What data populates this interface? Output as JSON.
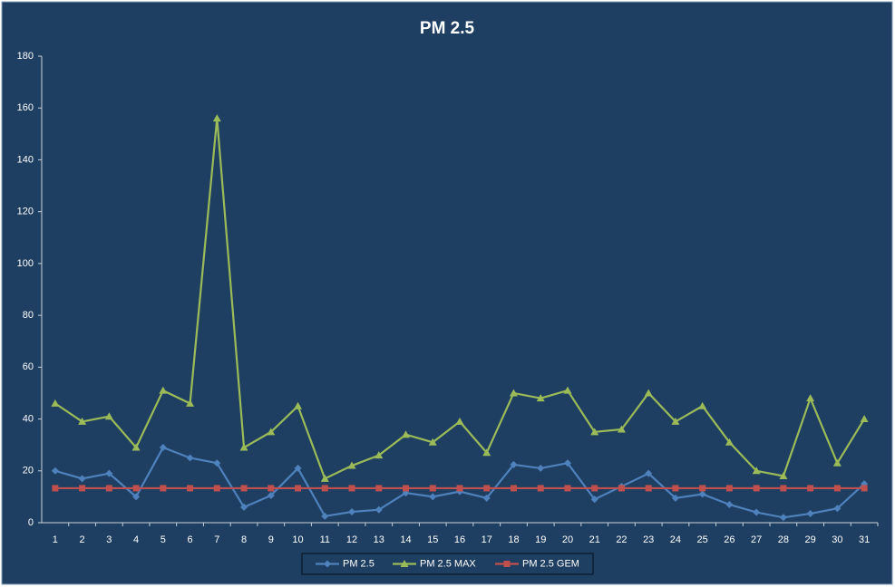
{
  "chart_data": {
    "type": "line",
    "title": "PM 2.5",
    "categories": [
      "1",
      "2",
      "3",
      "4",
      "5",
      "6",
      "7",
      "8",
      "9",
      "10",
      "11",
      "12",
      "13",
      "14",
      "15",
      "16",
      "17",
      "18",
      "19",
      "20",
      "21",
      "22",
      "23",
      "24",
      "25",
      "26",
      "27",
      "28",
      "29",
      "30",
      "31"
    ],
    "series": [
      {
        "name": "PM 2.5",
        "color": "#4f81bd",
        "marker": "diamond",
        "values": [
          20,
          17,
          19,
          10,
          29,
          25,
          23,
          6,
          10.5,
          21,
          2.5,
          4.2,
          5,
          11.5,
          10,
          12,
          9.5,
          22.4,
          21,
          23,
          9,
          14,
          19,
          9.5,
          11,
          7,
          4,
          2,
          3.5,
          5.5,
          15
        ]
      },
      {
        "name": "PM 2.5 MAX",
        "color": "#9bbb59",
        "marker": "triangle",
        "values": [
          46,
          39,
          41,
          29,
          51,
          46,
          156,
          29,
          35,
          45,
          17,
          22,
          26,
          34,
          31,
          39,
          27,
          50,
          48,
          51,
          35,
          36,
          50,
          39,
          45,
          31,
          20,
          18,
          48,
          23,
          40
        ]
      },
      {
        "name": "PM 2.5 GEM",
        "color": "#c0504d",
        "marker": "square",
        "values": [
          13.3,
          13.3,
          13.3,
          13.3,
          13.3,
          13.3,
          13.3,
          13.3,
          13.3,
          13.3,
          13.3,
          13.3,
          13.3,
          13.3,
          13.3,
          13.3,
          13.3,
          13.3,
          13.3,
          13.3,
          13.3,
          13.3,
          13.3,
          13.3,
          13.3,
          13.3,
          13.3,
          13.3,
          13.3,
          13.3,
          13.3
        ]
      }
    ],
    "ylim": [
      0,
      180
    ],
    "yticks": [
      0,
      20,
      40,
      60,
      80,
      100,
      120,
      140,
      160,
      180
    ],
    "grid": false,
    "legend": "bottom"
  }
}
